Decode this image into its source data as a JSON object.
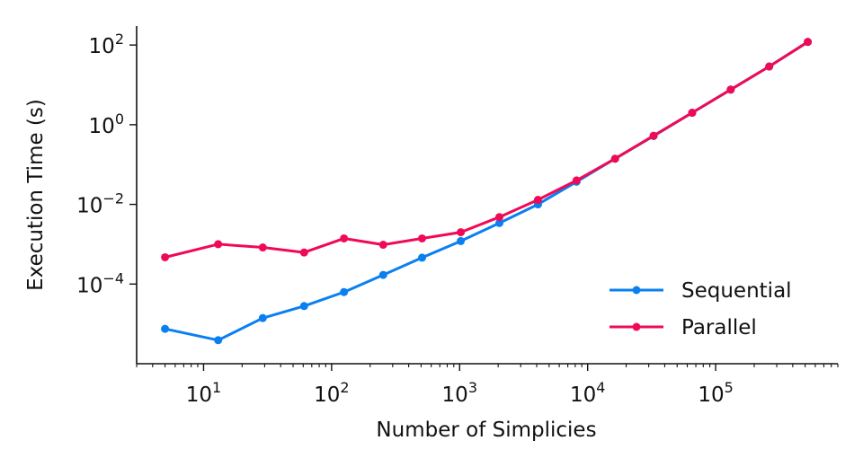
{
  "chart_data": {
    "type": "line",
    "xlabel": "Number of Simplicies",
    "ylabel": "Execution Time (s)",
    "xscale": "log",
    "yscale": "log",
    "xlim": [
      3,
      900000
    ],
    "ylim": [
      1e-06,
      300
    ],
    "grid": false,
    "legend_position": "bottom-right",
    "x_ticks": [
      {
        "base": "10",
        "exp": "1",
        "value": 10
      },
      {
        "base": "10",
        "exp": "2",
        "value": 100
      },
      {
        "base": "10",
        "exp": "3",
        "value": 1000
      },
      {
        "base": "10",
        "exp": "4",
        "value": 10000
      },
      {
        "base": "10",
        "exp": "5",
        "value": 100000
      }
    ],
    "y_ticks": [
      {
        "base": "10",
        "exp": "2",
        "value": 100
      },
      {
        "base": "10",
        "exp": "0",
        "value": 1
      },
      {
        "base": "10",
        "exp": "−2",
        "value": 0.01
      },
      {
        "base": "10",
        "exp": "−4",
        "value": 0.0001
      }
    ],
    "x": [
      5,
      13,
      29,
      61,
      125,
      253,
      509,
      1021,
      2045,
      4093,
      8189,
      16381,
      32765,
      65533,
      131069,
      262141,
      524285
    ],
    "series": [
      {
        "name": "Sequential",
        "color": "#0a80f0",
        "values": [
          7.5e-06,
          3.9e-06,
          1.4e-05,
          2.8e-05,
          6.3e-05,
          0.00017,
          0.00046,
          0.0012,
          0.0034,
          0.01,
          0.037,
          0.14,
          0.52,
          2.0,
          7.6,
          29,
          120
        ]
      },
      {
        "name": "Parallel",
        "color": "#f00a56",
        "values": [
          0.00047,
          0.001,
          0.00083,
          0.00062,
          0.0014,
          0.00097,
          0.0014,
          0.002,
          0.0048,
          0.013,
          0.04,
          0.14,
          0.53,
          2.0,
          7.6,
          29,
          120
        ]
      }
    ]
  }
}
